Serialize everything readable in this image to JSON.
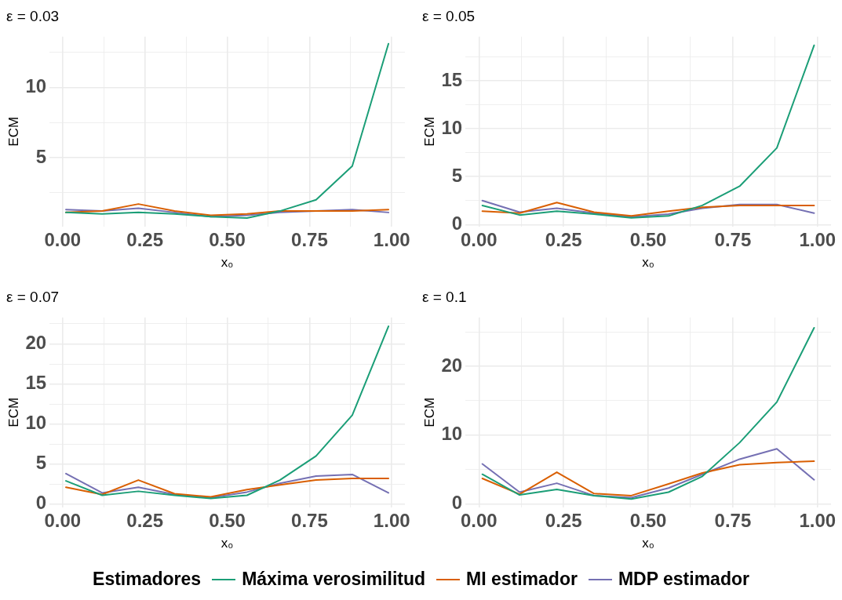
{
  "chart_data": [
    {
      "type": "line",
      "title": "ε = 0.03",
      "xlabel": "x₀",
      "ylabel": "ECM",
      "grid": true,
      "legend": "bottom",
      "legend_title": "Estimadores",
      "x": [
        0.01,
        0.12,
        0.23,
        0.34,
        0.45,
        0.56,
        0.66,
        0.77,
        0.88,
        0.99
      ],
      "xlim": [
        -0.04,
        1.04
      ],
      "xticks": [
        {
          "value": 0,
          "label": "0.00"
        },
        {
          "value": 0.125,
          "label": null
        },
        {
          "value": 0.25,
          "label": "0.25"
        },
        {
          "value": 0.375,
          "label": null
        },
        {
          "value": 0.5,
          "label": "0.50"
        },
        {
          "value": 0.625,
          "label": null
        },
        {
          "value": 0.75,
          "label": "0.75"
        },
        {
          "value": 0.875,
          "label": null
        },
        {
          "value": 1,
          "label": "1.00"
        }
      ],
      "ylim": [
        0.1,
        13.6
      ],
      "yticks": [
        {
          "value": 2.5,
          "label": null
        },
        5,
        {
          "value": 7.5,
          "label": null
        },
        10,
        {
          "value": 12.5,
          "label": null
        }
      ],
      "series": [
        {
          "name": "Máxima verosimilitud",
          "color": "#1b9e77",
          "values": [
            1.1,
            1.0,
            1.1,
            1.0,
            0.8,
            0.7,
            1.2,
            2.0,
            4.4,
            13.1
          ]
        },
        {
          "name": "MI estimador",
          "color": "#d95f02",
          "values": [
            1.1,
            1.2,
            1.7,
            1.2,
            0.9,
            1.0,
            1.2,
            1.2,
            1.2,
            1.3
          ]
        },
        {
          "name": "MDP estimador",
          "color": "#7570b3",
          "values": [
            1.3,
            1.2,
            1.4,
            1.1,
            0.8,
            0.9,
            1.1,
            1.2,
            1.3,
            1.1
          ]
        }
      ]
    },
    {
      "type": "line",
      "title": "ε = 0.05",
      "xlabel": "x₀",
      "ylabel": "ECM",
      "grid": true,
      "x": [
        0.01,
        0.12,
        0.23,
        0.34,
        0.45,
        0.56,
        0.66,
        0.77,
        0.88,
        0.99
      ],
      "xlim": [
        -0.04,
        1.04
      ],
      "xticks": [
        {
          "value": 0,
          "label": "0.00"
        },
        {
          "value": 0.125,
          "label": null
        },
        {
          "value": 0.25,
          "label": "0.25"
        },
        {
          "value": 0.375,
          "label": null
        },
        {
          "value": 0.5,
          "label": "0.50"
        },
        {
          "value": 0.625,
          "label": null
        },
        {
          "value": 0.75,
          "label": "0.75"
        },
        {
          "value": 0.875,
          "label": null
        },
        {
          "value": 1,
          "label": "1.00"
        }
      ],
      "ylim": [
        -0.2,
        19.6
      ],
      "yticks": [
        0,
        {
          "value": 2.5,
          "label": null
        },
        5,
        {
          "value": 7.5,
          "label": null
        },
        10,
        {
          "value": 12.5,
          "label": null
        },
        15,
        {
          "value": 17.5,
          "label": null
        }
      ],
      "series": [
        {
          "color": "#1b9e77",
          "values": [
            2.0,
            1.0,
            1.4,
            1.1,
            0.7,
            0.9,
            2.0,
            4.0,
            8.0,
            18.7
          ]
        },
        {
          "color": "#d95f02",
          "values": [
            1.4,
            1.2,
            2.3,
            1.3,
            0.9,
            1.4,
            1.8,
            2.0,
            2.0,
            2.0
          ]
        },
        {
          "color": "#7570b3",
          "values": [
            2.5,
            1.3,
            1.7,
            1.2,
            0.8,
            1.1,
            1.7,
            2.1,
            2.1,
            1.2
          ]
        }
      ]
    },
    {
      "type": "line",
      "title": "ε = 0.07",
      "xlabel": "x₀",
      "ylabel": "ECM",
      "grid": true,
      "x": [
        0.01,
        0.12,
        0.23,
        0.34,
        0.45,
        0.56,
        0.66,
        0.77,
        0.88,
        0.99
      ],
      "xlim": [
        -0.04,
        1.04
      ],
      "xticks": [
        {
          "value": 0,
          "label": "0.00"
        },
        {
          "value": 0.125,
          "label": null
        },
        {
          "value": 0.25,
          "label": "0.25"
        },
        {
          "value": 0.375,
          "label": null
        },
        {
          "value": 0.5,
          "label": "0.50"
        },
        {
          "value": 0.625,
          "label": null
        },
        {
          "value": 0.75,
          "label": "0.75"
        },
        {
          "value": 0.875,
          "label": null
        },
        {
          "value": 1,
          "label": "1.00"
        }
      ],
      "ylim": [
        -0.4,
        23.3
      ],
      "yticks": [
        0,
        {
          "value": 2.5,
          "label": null
        },
        5,
        {
          "value": 7.5,
          "label": null
        },
        10,
        {
          "value": 12.5,
          "label": null
        },
        15,
        {
          "value": 17.5,
          "label": null
        },
        20,
        {
          "value": 22.5,
          "label": null
        }
      ],
      "series": [
        {
          "color": "#1b9e77",
          "values": [
            2.9,
            1.1,
            1.6,
            1.1,
            0.7,
            1.1,
            3.0,
            6.0,
            11.1,
            22.2
          ]
        },
        {
          "color": "#d95f02",
          "values": [
            2.1,
            1.2,
            3.0,
            1.3,
            0.9,
            1.8,
            2.4,
            3.0,
            3.2,
            3.2
          ]
        },
        {
          "color": "#7570b3",
          "values": [
            3.8,
            1.4,
            2.1,
            1.2,
            0.8,
            1.5,
            2.6,
            3.5,
            3.7,
            1.4
          ]
        }
      ]
    },
    {
      "type": "line",
      "title": "ε = 0.1",
      "xlabel": "x₀",
      "ylabel": "ECM",
      "grid": true,
      "x": [
        0.01,
        0.12,
        0.23,
        0.34,
        0.45,
        0.56,
        0.66,
        0.77,
        0.88,
        0.99
      ],
      "xlim": [
        -0.04,
        1.04
      ],
      "xticks": [
        {
          "value": 0,
          "label": "0.00"
        },
        {
          "value": 0.125,
          "label": null
        },
        {
          "value": 0.25,
          "label": "0.25"
        },
        {
          "value": 0.375,
          "label": null
        },
        {
          "value": 0.5,
          "label": "0.50"
        },
        {
          "value": 0.625,
          "label": null
        },
        {
          "value": 0.75,
          "label": "0.75"
        },
        {
          "value": 0.875,
          "label": null
        },
        {
          "value": 1,
          "label": "1.00"
        }
      ],
      "ylim": [
        -0.5,
        27.1
      ],
      "yticks": [
        0,
        {
          "value": 5,
          "label": null
        },
        10,
        {
          "value": 15,
          "label": null
        },
        20,
        {
          "value": 25,
          "label": null
        }
      ],
      "series": [
        {
          "color": "#1b9e77",
          "values": [
            4.3,
            1.3,
            2.1,
            1.2,
            0.7,
            1.7,
            4.0,
            8.9,
            14.8,
            25.6
          ]
        },
        {
          "color": "#d95f02",
          "values": [
            3.7,
            1.4,
            4.6,
            1.5,
            1.2,
            2.9,
            4.5,
            5.7,
            6.0,
            6.2
          ]
        },
        {
          "color": "#7570b3",
          "values": [
            5.8,
            1.7,
            3.0,
            1.2,
            0.9,
            2.3,
            4.3,
            6.5,
            8.0,
            3.5
          ]
        }
      ]
    }
  ]
}
